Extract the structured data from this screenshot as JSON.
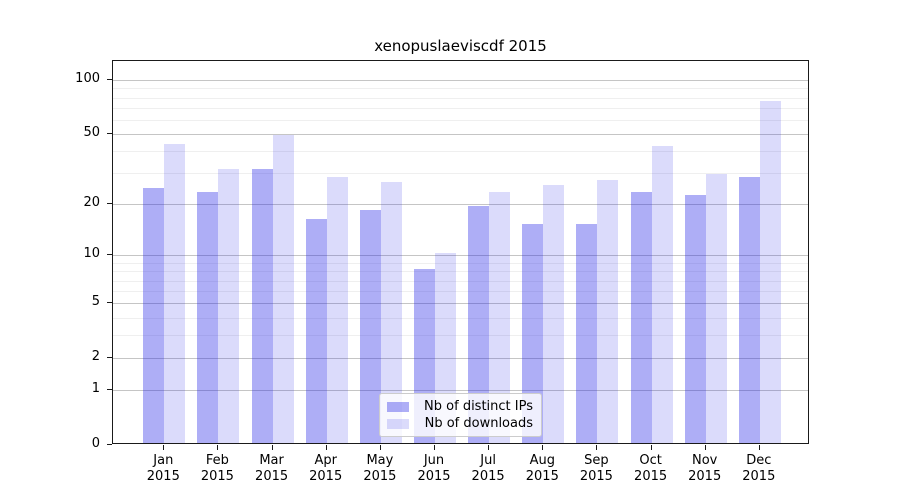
{
  "chart_data": {
    "type": "bar",
    "title": "xenopuslaeviscdf 2015",
    "categories": [
      "Jan",
      "Feb",
      "Mar",
      "Apr",
      "May",
      "Jun",
      "Jul",
      "Aug",
      "Sep",
      "Oct",
      "Nov",
      "Dec"
    ],
    "category_year": "2015",
    "series": [
      {
        "name": "Nb of distinct IPs",
        "color": "rgba(30,30,230,0.36)",
        "values": [
          24,
          23,
          31,
          16,
          18,
          8,
          19,
          15,
          15,
          23,
          22,
          28
        ]
      },
      {
        "name": "Nb of downloads",
        "color": "rgba(30,30,230,0.16)",
        "values": [
          43,
          31,
          48,
          28,
          26,
          10,
          23,
          25,
          27,
          42,
          29,
          75
        ]
      }
    ],
    "xlabel": "",
    "ylabel": "",
    "y_scale": "log10(1+y)",
    "ylim": [
      0,
      128
    ],
    "y_major_ticks": [
      {
        "label": "100",
        "value": 100
      },
      {
        "label": "50",
        "value": 50
      },
      {
        "label": "20",
        "value": 20
      },
      {
        "label": "10",
        "value": 10
      },
      {
        "label": "5",
        "value": 5
      },
      {
        "label": "2",
        "value": 2
      },
      {
        "label": "1",
        "value": 1
      },
      {
        "label": "0",
        "value": 0
      }
    ],
    "y_minor_ticks": [
      3,
      4,
      6,
      7,
      8,
      9,
      30,
      40,
      60,
      70,
      80,
      90
    ],
    "grid": true,
    "legend_position": "lower-center"
  },
  "colors": {
    "background": "#ffffff",
    "spine": "#1a1a1a",
    "grid_major": "#969696",
    "grid_minor": "#c8c8c8",
    "bar_distinct_ips": "#a8a8f2",
    "bar_downloads": "#dadaf9"
  }
}
